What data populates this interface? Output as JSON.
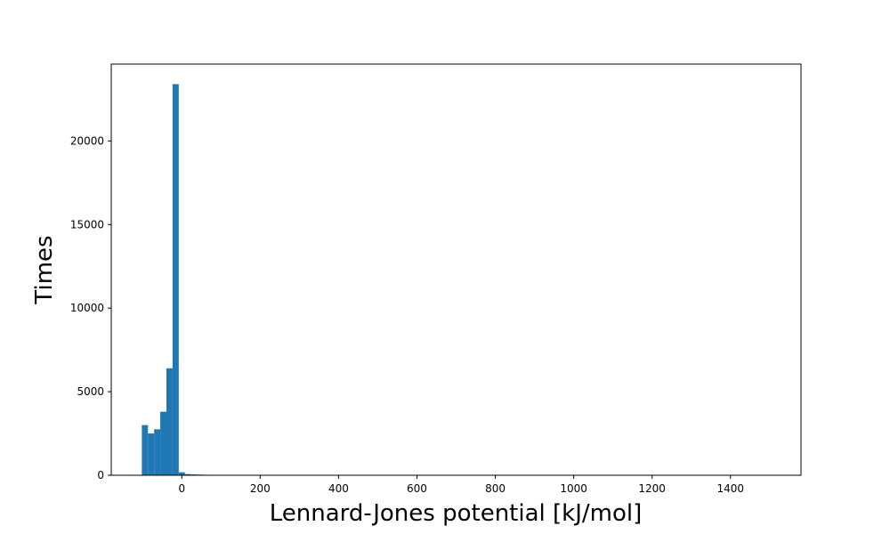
{
  "chart_data": {
    "type": "bar",
    "subtype": "histogram",
    "xlabel": "Lennard-Jones potential [kJ/mol]",
    "ylabel": "Times",
    "xlim": [
      -180,
      1580
    ],
    "ylim": [
      0,
      24600
    ],
    "xticks": [
      0,
      200,
      400,
      600,
      800,
      1000,
      1200,
      1400
    ],
    "yticks": [
      0,
      5000,
      10000,
      15000,
      20000
    ],
    "bin_width": 15.7,
    "bins": [
      {
        "x0": -102.0,
        "count": 3000
      },
      {
        "x0": -86.3,
        "count": 2500
      },
      {
        "x0": -70.6,
        "count": 2750
      },
      {
        "x0": -54.9,
        "count": 3800
      },
      {
        "x0": -39.2,
        "count": 6400
      },
      {
        "x0": -23.5,
        "count": 23400
      },
      {
        "x0": -7.8,
        "count": 180
      },
      {
        "x0": 7.9,
        "count": 70
      },
      {
        "x0": 23.6,
        "count": 50
      },
      {
        "x0": 39.3,
        "count": 40
      },
      {
        "x0": 55.0,
        "count": 30
      }
    ],
    "bar_color": "#1f77b4",
    "grid": false,
    "legend": "none"
  }
}
